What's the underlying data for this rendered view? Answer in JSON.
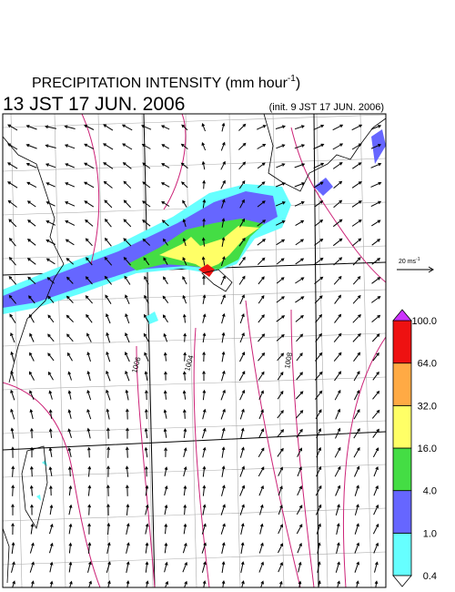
{
  "header": {
    "title": "PRECIPITATION INTENSITY (mm hour",
    "title_exponent": "-1",
    "title_close": ")",
    "valid_time": "13 JST 17 JUN. 2006",
    "init_time": "(init. 9 JST 17 JUN. 2006)"
  },
  "reference_vector": {
    "label": "20 ms",
    "exponent": "-1"
  },
  "contour_labels": [
    "1006",
    "1004",
    "1008"
  ],
  "colorbar": {
    "levels": [
      0.4,
      {
        "value": 1,
        "label": "1.0"
      },
      {
        "value": 4,
        "label": "4.0"
      },
      {
        "value": 16,
        "label": "16.0"
      },
      {
        "value": 32,
        "label": "32.0"
      },
      {
        "value": 64,
        "label": "64.0"
      },
      {
        "value": 100,
        "label": "100.0"
      }
    ],
    "colors": [
      "#66ffff",
      "#6666ff",
      "#44dd44",
      "#ffff66",
      "#ffaa44",
      "#ee1111"
    ],
    "over_color": "#cc33ff",
    "under_color": "#ffffff"
  }
}
